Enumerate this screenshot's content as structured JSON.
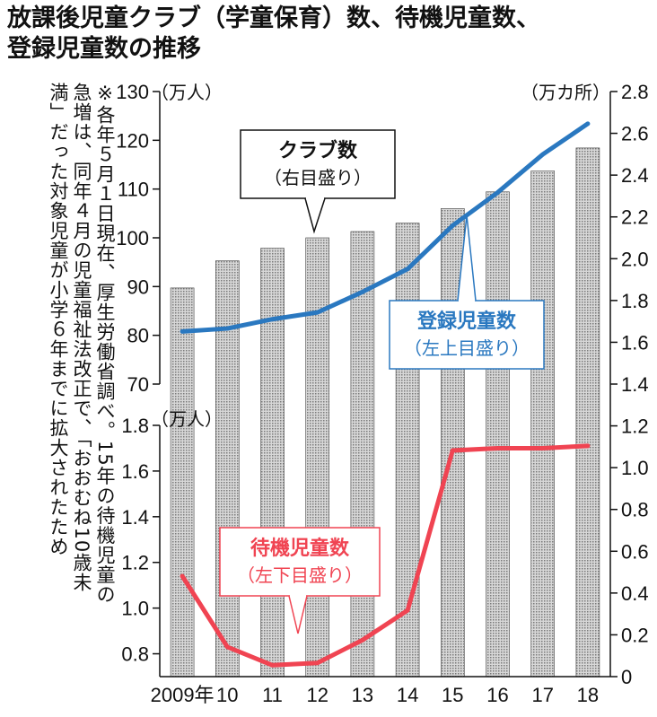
{
  "title": {
    "line1": "放課後児童クラブ（学童保育）数、待機児童数、",
    "line2": "登録児童数の推移"
  },
  "note": {
    "columns": [
      "※各年５月１日現在、厚生労働省調べ。15年の待機児童の",
      "急増は、同年４月の児童福祉法改正で、「おおむね10歳未",
      "満」だった対象児童が小学６年までに拡大されたため"
    ]
  },
  "units": {
    "left_top": "（万人）",
    "left_bottom": "（万人）",
    "right": "（万カ所）"
  },
  "callouts": {
    "clubs": {
      "title": "クラブ数",
      "sub": "（右目盛り）"
    },
    "registered": {
      "title": "登録児童数",
      "sub": "（左上目盛り）"
    },
    "waiting": {
      "title": "待機児童数",
      "sub": "（左下目盛り）"
    }
  },
  "colors": {
    "bar": "#bdbdbd",
    "registered": "#2a78c0",
    "waiting": "#f04452",
    "axis": "#111111"
  },
  "chart_data": {
    "type": "bar",
    "categories": [
      "2009年",
      "10",
      "11",
      "12",
      "13",
      "14",
      "15",
      "16",
      "17",
      "18"
    ],
    "series": [
      {
        "name": "クラブ数",
        "type": "bar",
        "axis": "right",
        "values": [
          1.86,
          1.99,
          2.05,
          2.1,
          2.13,
          2.17,
          2.24,
          2.32,
          2.42,
          2.53
        ]
      },
      {
        "name": "登録児童数",
        "type": "line",
        "axis": "left-top",
        "values": [
          80.8,
          81.4,
          83.3,
          84.7,
          88.9,
          93.6,
          102.5,
          109.3,
          117.1,
          123.4
        ]
      },
      {
        "name": "待機児童数",
        "type": "line",
        "axis": "left-bottom",
        "values": [
          1.14,
          0.83,
          0.75,
          0.76,
          0.86,
          0.99,
          1.69,
          1.7,
          1.7,
          1.71
        ]
      }
    ],
    "axes": {
      "right": {
        "range": [
          0,
          2.8
        ],
        "ticks": [
          "0",
          "0.2",
          "0.4",
          "0.6",
          "0.8",
          "1.0",
          "1.2",
          "1.4",
          "1.6",
          "1.8",
          "2.0",
          "2.2",
          "2.4",
          "2.6",
          "2.8"
        ]
      },
      "left_top": {
        "range": [
          70,
          130
        ],
        "ticks": [
          "70",
          "80",
          "90",
          "100",
          "110",
          "120",
          "130"
        ]
      },
      "left_bottom": {
        "range": [
          0.7,
          1.8
        ],
        "ticks": [
          "0.8",
          "1.0",
          "1.2",
          "1.4",
          "1.6",
          "1.8"
        ]
      }
    },
    "grid": false,
    "legend": "callouts"
  }
}
